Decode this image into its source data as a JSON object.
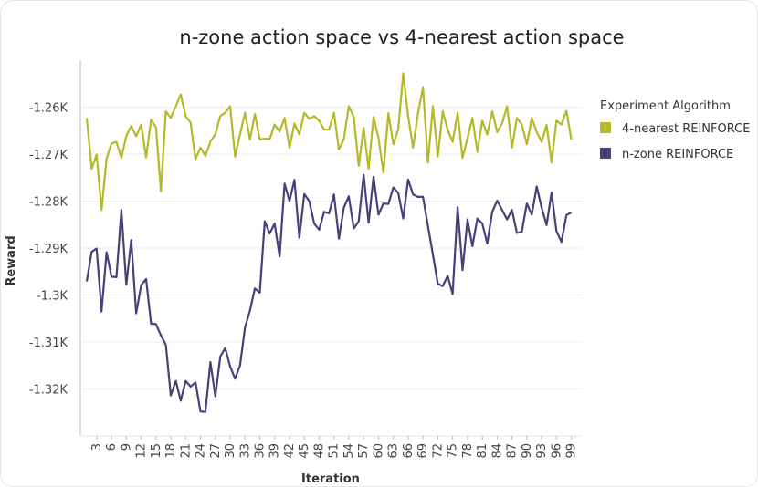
{
  "chart_data": {
    "type": "line",
    "title": "n-zone action space vs 4-nearest action space",
    "xlabel": "Iteration",
    "ylabel": "Reward",
    "ylim": [
      -1330,
      -1250
    ],
    "xlim": [
      1,
      100
    ],
    "yticks": [
      -1260,
      -1270,
      -1280,
      -1290,
      -1300,
      -1310,
      -1320
    ],
    "ytick_labels": [
      "-1.26K",
      "-1.27K",
      "-1.28K",
      "-1.29K",
      "-1.3K",
      "-1.31K",
      "-1.32K"
    ],
    "xticks": [
      3,
      6,
      9,
      12,
      15,
      18,
      21,
      24,
      27,
      30,
      33,
      36,
      39,
      42,
      45,
      48,
      51,
      54,
      57,
      60,
      63,
      66,
      69,
      72,
      75,
      78,
      81,
      84,
      87,
      90,
      93,
      96,
      99
    ],
    "grid": true,
    "legend_title": "Experiment Algorithm",
    "legend_position": "right",
    "series": [
      {
        "name": "4-nearest REINFORCE",
        "color": "#b5b829",
        "values": [
          -1262.3,
          -1273.1,
          -1270.1,
          -1281.9,
          -1271.0,
          -1267.7,
          -1267.4,
          -1270.8,
          -1266.1,
          -1264.0,
          -1266.2,
          -1263.7,
          -1270.7,
          -1262.7,
          -1264.3,
          -1277.9,
          -1260.9,
          -1262.3,
          -1259.8,
          -1257.3,
          -1261.9,
          -1263.3,
          -1271.1,
          -1268.6,
          -1270.4,
          -1267.3,
          -1265.8,
          -1261.9,
          -1261.2,
          -1259.8,
          -1270.5,
          -1265.8,
          -1261.2,
          -1266.9,
          -1261.5,
          -1266.9,
          -1266.7,
          -1266.8,
          -1263.7,
          -1265.2,
          -1262.3,
          -1268.6,
          -1263.5,
          -1265.8,
          -1261.2,
          -1262.5,
          -1261.9,
          -1262.9,
          -1264.8,
          -1264.8,
          -1261.2,
          -1269.0,
          -1266.8,
          -1259.8,
          -1262.1,
          -1272.5,
          -1264.4,
          -1273.1,
          -1262.1,
          -1266.5,
          -1273.9,
          -1261.3,
          -1267.9,
          -1264.7,
          -1252.8,
          -1261.9,
          -1268.6,
          -1261.3,
          -1255.7,
          -1271.8,
          -1259.8,
          -1270.5,
          -1260.9,
          -1264.8,
          -1267.4,
          -1261.2,
          -1270.8,
          -1266.6,
          -1262.3,
          -1269.5,
          -1262.9,
          -1265.8,
          -1260.9,
          -1265.3,
          -1263.5,
          -1259.8,
          -1268.6,
          -1262.3,
          -1263.7,
          -1267.9,
          -1262.3,
          -1265.3,
          -1267.4,
          -1263.8,
          -1271.8,
          -1262.9,
          -1263.7,
          -1260.8,
          -1266.9
        ]
      },
      {
        "name": "n-zone REINFORCE",
        "color": "#4b3f7a",
        "values": [
          -1297.1,
          -1290.8,
          -1290.1,
          -1303.5,
          -1290.9,
          -1296.1,
          -1296.2,
          -1281.9,
          -1297.8,
          -1288.3,
          -1303.9,
          -1297.9,
          -1296.6,
          -1306.1,
          -1306.2,
          -1308.6,
          -1310.6,
          -1321.4,
          -1318.3,
          -1322.5,
          -1318.3,
          -1319.5,
          -1318.6,
          -1324.8,
          -1324.9,
          -1314.3,
          -1321.6,
          -1313.1,
          -1311.3,
          -1315.2,
          -1317.8,
          -1315.0,
          -1306.9,
          -1303.3,
          -1298.6,
          -1299.5,
          -1284.3,
          -1286.9,
          -1284.8,
          -1291.8,
          -1276.3,
          -1280.0,
          -1275.5,
          -1287.8,
          -1278.5,
          -1280.0,
          -1284.8,
          -1286.1,
          -1282.3,
          -1282.6,
          -1278.6,
          -1288.0,
          -1281.4,
          -1279.0,
          -1285.8,
          -1284.3,
          -1274.4,
          -1284.6,
          -1274.8,
          -1282.9,
          -1280.5,
          -1280.6,
          -1277.1,
          -1278.3,
          -1283.7,
          -1275.4,
          -1278.6,
          -1279.1,
          -1279.1,
          -1285.3,
          -1291.4,
          -1297.6,
          -1298.1,
          -1295.9,
          -1299.8,
          -1281.3,
          -1294.7,
          -1283.9,
          -1289.6,
          -1283.7,
          -1284.8,
          -1289.0,
          -1282.3,
          -1279.9,
          -1281.9,
          -1283.9,
          -1281.9,
          -1286.8,
          -1286.5,
          -1280.5,
          -1282.9,
          -1276.9,
          -1281.4,
          -1285.1,
          -1278.2,
          -1286.4,
          -1288.7,
          -1283.0,
          -1282.4
        ]
      }
    ]
  }
}
